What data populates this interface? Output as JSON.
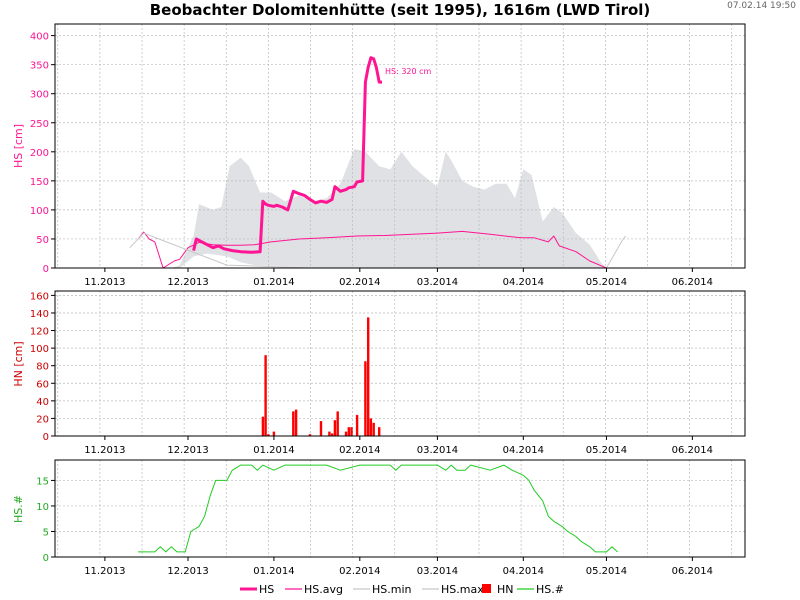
{
  "title": "Beobachter Dolomitenhütte (seit 1995), 1616m (LWD Tirol)",
  "timestamp": "07.02.14 19:50",
  "colors": {
    "hs": "#ff1493",
    "hn": "#ff0000",
    "count": "#22cc22",
    "band": "#dfe1e4",
    "grid": "#bbbbbb"
  },
  "chart_data": [
    {
      "type": "line",
      "ylabel": "HS [cm]",
      "ylim": [
        0,
        420
      ],
      "yticks": [
        0,
        50,
        100,
        150,
        200,
        250,
        300,
        350,
        400
      ],
      "xlim": [
        "2013-10-14",
        "2014-06-20"
      ],
      "xticks": [
        {
          "date": "2013-11-01",
          "label": "11.2013"
        },
        {
          "date": "2013-12-01",
          "label": "12.2013"
        },
        {
          "date": "2014-01-01",
          "label": "01.2014"
        },
        {
          "date": "2014-02-01",
          "label": "02.2014"
        },
        {
          "date": "2014-03-01",
          "label": "03.2014"
        },
        {
          "date": "2014-04-01",
          "label": "04.2014"
        },
        {
          "date": "2014-05-01",
          "label": "05.2014"
        },
        {
          "date": "2014-06-01",
          "label": "06.2014"
        }
      ],
      "grid": true,
      "annotation": "HS: 320 cm",
      "series": [
        {
          "name": "HS",
          "color": "#ff1493",
          "points": [
            [
              "2013-12-03",
              30
            ],
            [
              "2013-12-04",
              50
            ],
            [
              "2013-12-06",
              45
            ],
            [
              "2013-12-08",
              40
            ],
            [
              "2013-12-10",
              35
            ],
            [
              "2013-12-12",
              38
            ],
            [
              "2013-12-14",
              33
            ],
            [
              "2013-12-17",
              30
            ],
            [
              "2013-12-20",
              28
            ],
            [
              "2013-12-24",
              27
            ],
            [
              "2013-12-27",
              28
            ],
            [
              "2013-12-28",
              115
            ],
            [
              "2013-12-29",
              110
            ],
            [
              "2013-12-30",
              108
            ],
            [
              "2014-01-01",
              106
            ],
            [
              "2014-01-02",
              108
            ],
            [
              "2014-01-04",
              105
            ],
            [
              "2014-01-06",
              100
            ],
            [
              "2014-01-08",
              132
            ],
            [
              "2014-01-10",
              128
            ],
            [
              "2014-01-12",
              125
            ],
            [
              "2014-01-14",
              118
            ],
            [
              "2014-01-16",
              112
            ],
            [
              "2014-01-18",
              115
            ],
            [
              "2014-01-20",
              113
            ],
            [
              "2014-01-22",
              118
            ],
            [
              "2014-01-23",
              140
            ],
            [
              "2014-01-25",
              132
            ],
            [
              "2014-01-27",
              135
            ],
            [
              "2014-01-28",
              138
            ],
            [
              "2014-01-30",
              140
            ],
            [
              "2014-01-31",
              148
            ],
            [
              "2014-02-02",
              150
            ],
            [
              "2014-02-03",
              320
            ],
            [
              "2014-02-04",
              345
            ],
            [
              "2014-02-05",
              362
            ],
            [
              "2014-02-06",
              360
            ],
            [
              "2014-02-07",
              345
            ],
            [
              "2014-02-08",
              320
            ],
            [
              "2014-02-09",
              320
            ]
          ]
        },
        {
          "name": "HS.avg",
          "color": "#ff1493",
          "points": [
            [
              "2013-11-13",
              50
            ],
            [
              "2013-11-15",
              62
            ],
            [
              "2013-11-17",
              50
            ],
            [
              "2013-11-19",
              45
            ],
            [
              "2013-11-22",
              0
            ],
            [
              "2013-11-26",
              12
            ],
            [
              "2013-11-28",
              15
            ],
            [
              "2013-12-01",
              35
            ],
            [
              "2013-12-05",
              44
            ],
            [
              "2013-12-10",
              40
            ],
            [
              "2013-12-15",
              39
            ],
            [
              "2013-12-20",
              39
            ],
            [
              "2013-12-25",
              40
            ],
            [
              "2013-12-31",
              45
            ],
            [
              "2014-01-10",
              50
            ],
            [
              "2014-01-20",
              52
            ],
            [
              "2014-01-31",
              55
            ],
            [
              "2014-02-10",
              56
            ],
            [
              "2014-02-20",
              58
            ],
            [
              "2014-03-01",
              60
            ],
            [
              "2014-03-10",
              63
            ],
            [
              "2014-03-20",
              58
            ],
            [
              "2014-03-31",
              52
            ],
            [
              "2014-04-05",
              52
            ],
            [
              "2014-04-10",
              45
            ],
            [
              "2014-04-12",
              55
            ],
            [
              "2014-04-14",
              38
            ],
            [
              "2014-04-20",
              28
            ],
            [
              "2014-04-25",
              12
            ],
            [
              "2014-04-30",
              2
            ],
            [
              "2014-05-01",
              0
            ]
          ]
        },
        {
          "name": "HS.min",
          "color": "#c8c8c8",
          "points": [
            [
              "2013-11-10",
              35
            ],
            [
              "2013-11-15",
              60
            ],
            [
              "2013-12-15",
              5
            ],
            [
              "2014-01-15",
              0
            ],
            [
              "2014-03-15",
              0
            ],
            [
              "2014-04-15",
              0
            ],
            [
              "2014-05-01",
              0
            ]
          ]
        },
        {
          "name": "HS.max",
          "color": "#c8c8c8",
          "points": [
            [
              "2014-05-01",
              0
            ],
            [
              "2014-05-07",
              50
            ],
            [
              "2014-05-08",
              55
            ]
          ]
        }
      ],
      "band": {
        "name": "HS.min/HS.max",
        "color": "#dfe1e4",
        "upper": [
          [
            "2013-11-10",
            30
          ],
          [
            "2013-11-15",
            55
          ],
          [
            "2013-11-20",
            5
          ],
          [
            "2013-11-25",
            0
          ],
          [
            "2013-11-28",
            5
          ],
          [
            "2013-12-03",
            55
          ],
          [
            "2013-12-05",
            110
          ],
          [
            "2013-12-10",
            100
          ],
          [
            "2013-12-13",
            105
          ],
          [
            "2013-12-16",
            175
          ],
          [
            "2013-12-20",
            190
          ],
          [
            "2013-12-23",
            175
          ],
          [
            "2013-12-27",
            130
          ],
          [
            "2013-12-31",
            130
          ],
          [
            "2014-01-05",
            115
          ],
          [
            "2014-01-10",
            125
          ],
          [
            "2014-01-15",
            115
          ],
          [
            "2014-01-20",
            120
          ],
          [
            "2014-01-25",
            145
          ],
          [
            "2014-01-30",
            205
          ],
          [
            "2014-02-03",
            200
          ],
          [
            "2014-02-08",
            175
          ],
          [
            "2014-02-12",
            170
          ],
          [
            "2014-02-16",
            200
          ],
          [
            "2014-02-20",
            175
          ],
          [
            "2014-02-25",
            155
          ],
          [
            "2014-03-01",
            140
          ],
          [
            "2014-03-04",
            200
          ],
          [
            "2014-03-06",
            185
          ],
          [
            "2014-03-10",
            150
          ],
          [
            "2014-03-14",
            140
          ],
          [
            "2014-03-18",
            135
          ],
          [
            "2014-03-22",
            145
          ],
          [
            "2014-03-26",
            145
          ],
          [
            "2014-03-29",
            120
          ],
          [
            "2014-04-01",
            170
          ],
          [
            "2014-04-04",
            160
          ],
          [
            "2014-04-08",
            80
          ],
          [
            "2014-04-12",
            105
          ],
          [
            "2014-04-15",
            95
          ],
          [
            "2014-04-20",
            60
          ],
          [
            "2014-04-25",
            40
          ],
          [
            "2014-04-29",
            10
          ],
          [
            "2014-05-01",
            0
          ]
        ],
        "lower": [
          [
            "2013-11-10",
            30
          ],
          [
            "2013-11-15",
            55
          ],
          [
            "2013-11-20",
            5
          ],
          [
            "2013-11-25",
            0
          ],
          [
            "2013-11-28",
            0
          ],
          [
            "2013-12-03",
            20
          ],
          [
            "2013-12-08",
            25
          ],
          [
            "2013-12-15",
            20
          ],
          [
            "2013-12-20",
            10
          ],
          [
            "2013-12-25",
            5
          ],
          [
            "2014-01-05",
            3
          ],
          [
            "2014-01-20",
            0
          ],
          [
            "2014-02-10",
            0
          ],
          [
            "2014-03-10",
            0
          ],
          [
            "2014-04-10",
            0
          ],
          [
            "2014-05-01",
            0
          ]
        ]
      }
    },
    {
      "type": "bar",
      "ylabel": "HN [cm]",
      "ylim": [
        0,
        165
      ],
      "yticks": [
        0,
        20,
        40,
        60,
        80,
        100,
        120,
        140,
        160
      ],
      "xlim": [
        "2013-10-14",
        "2014-06-20"
      ],
      "grid": true,
      "series": [
        {
          "name": "HN",
          "color": "#ff0000",
          "points": [
            [
              "2013-12-28",
              22
            ],
            [
              "2013-12-29",
              92
            ],
            [
              "2013-12-30",
              2
            ],
            [
              "2014-01-01",
              5
            ],
            [
              "2014-01-08",
              28
            ],
            [
              "2014-01-09",
              30
            ],
            [
              "2014-01-14",
              2
            ],
            [
              "2014-01-18",
              17
            ],
            [
              "2014-01-21",
              5
            ],
            [
              "2014-01-22",
              3
            ],
            [
              "2014-01-23",
              18
            ],
            [
              "2014-01-24",
              28
            ],
            [
              "2014-01-27",
              5
            ],
            [
              "2014-01-28",
              10
            ],
            [
              "2014-01-29",
              10
            ],
            [
              "2014-01-31",
              24
            ],
            [
              "2014-02-03",
              85
            ],
            [
              "2014-02-04",
              135
            ],
            [
              "2014-02-05",
              20
            ],
            [
              "2014-02-06",
              15
            ],
            [
              "2014-02-08",
              10
            ]
          ]
        }
      ]
    },
    {
      "type": "line",
      "ylabel": "HS.#",
      "ylim": [
        0,
        19
      ],
      "yticks": [
        0,
        5,
        10,
        15
      ],
      "xlim": [
        "2013-10-14",
        "2014-06-20"
      ],
      "grid": true,
      "series": [
        {
          "name": "HS.#",
          "color": "#22cc22",
          "points": [
            [
              "2013-11-13",
              1
            ],
            [
              "2013-11-19",
              1
            ],
            [
              "2013-11-21",
              2
            ],
            [
              "2013-11-23",
              1
            ],
            [
              "2013-11-25",
              2
            ],
            [
              "2013-11-27",
              1
            ],
            [
              "2013-11-30",
              1
            ],
            [
              "2013-12-01",
              3
            ],
            [
              "2013-12-02",
              5
            ],
            [
              "2013-12-05",
              6
            ],
            [
              "2013-12-07",
              8
            ],
            [
              "2013-12-09",
              12
            ],
            [
              "2013-12-11",
              15
            ],
            [
              "2013-12-15",
              15
            ],
            [
              "2013-12-17",
              17
            ],
            [
              "2013-12-20",
              18
            ],
            [
              "2013-12-24",
              18
            ],
            [
              "2013-12-26",
              17
            ],
            [
              "2013-12-28",
              18
            ],
            [
              "2014-01-01",
              17
            ],
            [
              "2014-01-05",
              18
            ],
            [
              "2014-01-20",
              18
            ],
            [
              "2014-01-25",
              17
            ],
            [
              "2014-02-01",
              18
            ],
            [
              "2014-02-12",
              18
            ],
            [
              "2014-02-14",
              17
            ],
            [
              "2014-02-16",
              18
            ],
            [
              "2014-03-01",
              18
            ],
            [
              "2014-03-04",
              17
            ],
            [
              "2014-03-06",
              18
            ],
            [
              "2014-03-08",
              17
            ],
            [
              "2014-03-11",
              17
            ],
            [
              "2014-03-13",
              18
            ],
            [
              "2014-03-20",
              17
            ],
            [
              "2014-03-25",
              18
            ],
            [
              "2014-03-28",
              17
            ],
            [
              "2014-04-01",
              16
            ],
            [
              "2014-04-03",
              15
            ],
            [
              "2014-04-05",
              13
            ],
            [
              "2014-04-08",
              11
            ],
            [
              "2014-04-10",
              8
            ],
            [
              "2014-04-12",
              7
            ],
            [
              "2014-04-15",
              6
            ],
            [
              "2014-04-17",
              5
            ],
            [
              "2014-04-20",
              4
            ],
            [
              "2014-04-22",
              3
            ],
            [
              "2014-04-25",
              2
            ],
            [
              "2014-04-27",
              1
            ],
            [
              "2014-05-01",
              1
            ],
            [
              "2014-05-03",
              2
            ],
            [
              "2014-05-05",
              1
            ]
          ]
        }
      ]
    }
  ],
  "legend": [
    {
      "label": "HS",
      "color": "#ff1493",
      "symbol": "thick-line"
    },
    {
      "label": "HS.avg",
      "color": "#ff1493",
      "symbol": "line"
    },
    {
      "label": "HS.min",
      "color": "#c8c8c8",
      "symbol": "line"
    },
    {
      "label": "HS.max",
      "color": "#c8c8c8",
      "symbol": "line"
    },
    {
      "label": "HN",
      "color": "#ff0000",
      "symbol": "square"
    },
    {
      "label": "HS.#",
      "color": "#22cc22",
      "symbol": "line"
    }
  ]
}
